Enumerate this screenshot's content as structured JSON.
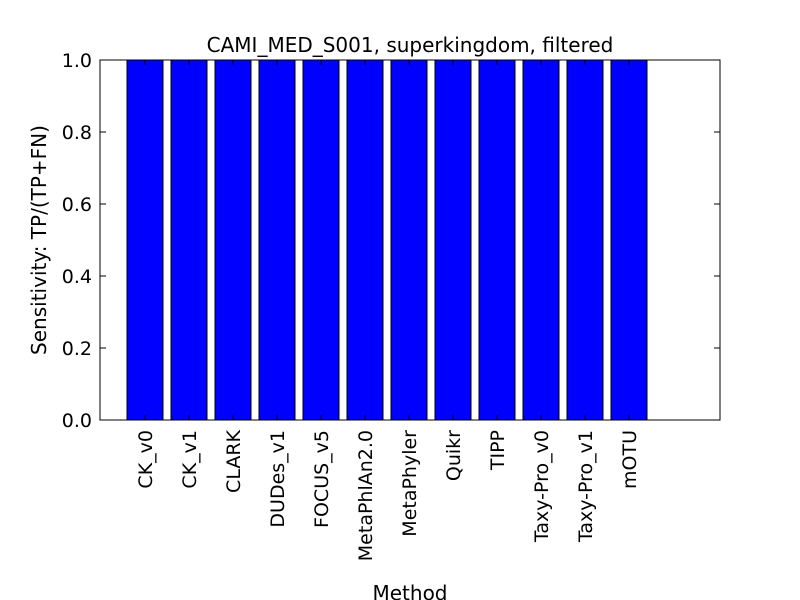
{
  "chart_data": {
    "type": "bar",
    "title": "CAMI_MED_S001, superkingdom, filtered",
    "xlabel": "Method",
    "ylabel": "Sensitivity: TP/(TP+FN)",
    "categories": [
      "CK_v0",
      "CK_v1",
      "CLARK",
      "DUDes_v1",
      "FOCUS_v5",
      "MetaPhlAn2.0",
      "MetaPhyler",
      "Quikr",
      "TIPP",
      "Taxy-Pro_v0",
      "Taxy-Pro_v1",
      "mOTU"
    ],
    "values": [
      1.0,
      1.0,
      1.0,
      1.0,
      1.0,
      1.0,
      1.0,
      1.0,
      1.0,
      1.0,
      1.0,
      1.0
    ],
    "ylim": [
      0.0,
      1.0
    ],
    "yticks": [
      "0.0",
      "0.2",
      "0.4",
      "0.6",
      "0.8",
      "1.0"
    ],
    "bar_color": "#0000ff",
    "grid": false,
    "legend": "none"
  }
}
